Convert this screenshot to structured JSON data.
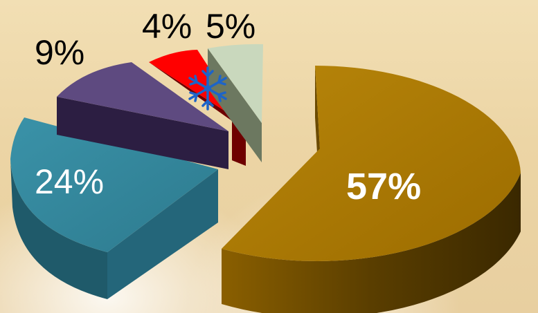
{
  "chart_data": {
    "type": "pie",
    "title": "",
    "style": "3d-exploded",
    "slices": [
      {
        "label": "57%",
        "value": 57,
        "color": "#ad7a02",
        "side": "#5a3f00",
        "label_color": "#ffffff",
        "label_bold": true
      },
      {
        "label": "24%",
        "value": 24,
        "color": "#33869c",
        "side": "#1d5666",
        "label_color": "#ffffff",
        "label_bold": false
      },
      {
        "label": "9%",
        "value": 9,
        "color": "#5e4a80",
        "side": "#2d1f45",
        "label_color": "#000000",
        "label_bold": false
      },
      {
        "label": "4%",
        "value": 4,
        "color": "#ff0000",
        "side": "#7a0000",
        "label_color": "#000000",
        "label_bold": false,
        "icon": "snowflake-icon"
      },
      {
        "label": "5%",
        "value": 5,
        "color": "#c9d8bd",
        "side": "#6e7a63",
        "label_color": "#000000",
        "label_bold": false
      }
    ]
  }
}
